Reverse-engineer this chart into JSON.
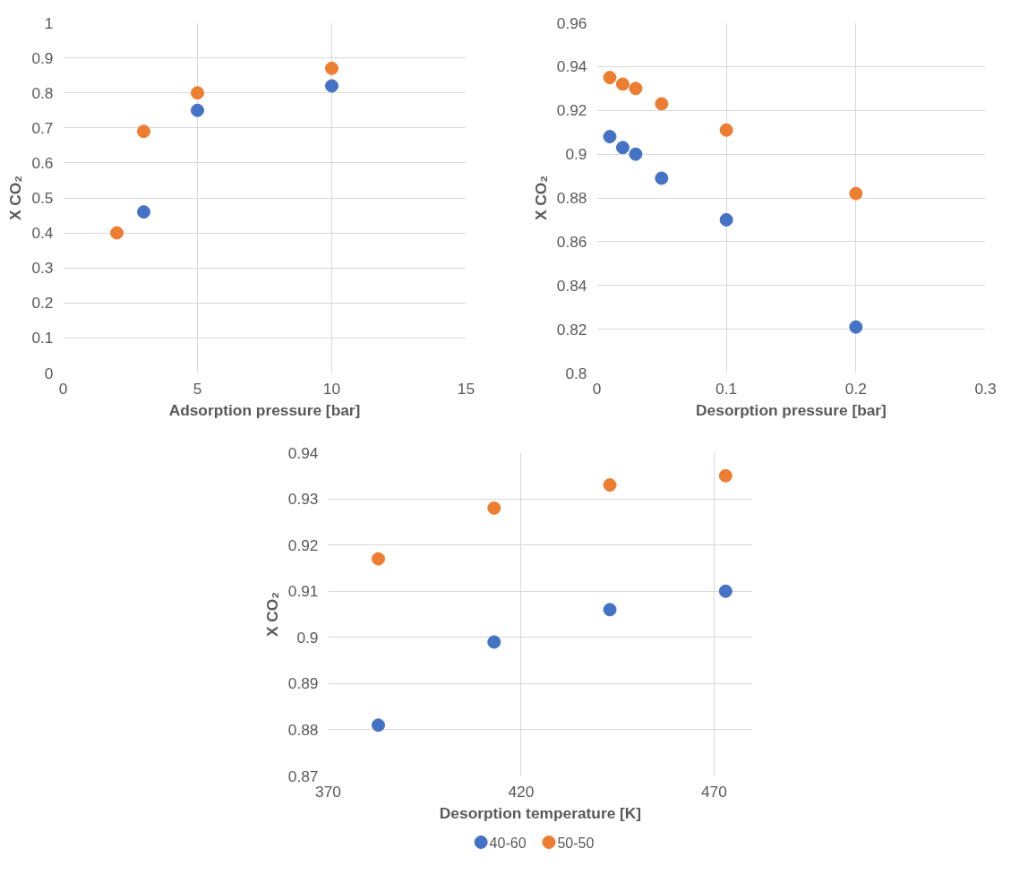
{
  "chart_data": [
    {
      "type": "scatter",
      "xlabel": "Adsorption pressure [bar]",
      "ylabel": "X CO₂",
      "xlim": [
        0,
        15
      ],
      "xticks": [
        0,
        5,
        10,
        15
      ],
      "ylim": [
        0,
        1
      ],
      "yticks": [
        0,
        0.1,
        0.2,
        0.3,
        0.4,
        0.5,
        0.6,
        0.7,
        0.8,
        0.9,
        1
      ],
      "grid": true,
      "marker": "circle",
      "x": [
        2,
        3,
        5,
        10
      ],
      "series": [
        {
          "color": "#4472c4",
          "values": [
            null,
            0.46,
            0.75,
            0.82
          ]
        },
        {
          "color": "#ed7d31",
          "values": [
            0.4,
            0.69,
            0.8,
            0.87
          ]
        }
      ]
    },
    {
      "type": "scatter",
      "xlabel": "Desorption pressure [bar]",
      "ylabel": "X CO₂",
      "xlim": [
        0,
        0.3
      ],
      "xticks": [
        0,
        0.1,
        0.2,
        0.3
      ],
      "ylim": [
        0.8,
        0.96
      ],
      "yticks": [
        0.8,
        0.82,
        0.84,
        0.86,
        0.88,
        0.9,
        0.92,
        0.94,
        0.96
      ],
      "grid": true,
      "marker": "circle",
      "x": [
        0.01,
        0.02,
        0.03,
        0.05,
        0.1,
        0.2
      ],
      "series": [
        {
          "color": "#4472c4",
          "values": [
            0.908,
            0.903,
            0.9,
            0.889,
            0.87,
            0.821
          ]
        },
        {
          "color": "#ed7d31",
          "values": [
            0.935,
            0.932,
            0.93,
            0.923,
            0.911,
            0.882
          ]
        }
      ]
    },
    {
      "type": "scatter",
      "xlabel": "Desorption temperature [K]",
      "ylabel": "X CO₂",
      "xlim": [
        370,
        480
      ],
      "xticks": [
        370,
        420,
        470
      ],
      "ylim": [
        0.87,
        0.94
      ],
      "yticks": [
        0.87,
        0.88,
        0.89,
        0.9,
        0.91,
        0.92,
        0.93,
        0.94
      ],
      "grid": true,
      "marker": "circle",
      "legend": "bottom",
      "x": [
        383,
        413,
        443,
        473
      ],
      "series": [
        {
          "name": "40-60",
          "color": "#4472c4",
          "values": [
            0.881,
            0.899,
            0.906,
            0.91
          ]
        },
        {
          "name": "50-50",
          "color": "#ed7d31",
          "values": [
            0.917,
            0.928,
            0.933,
            0.935
          ]
        }
      ]
    }
  ]
}
